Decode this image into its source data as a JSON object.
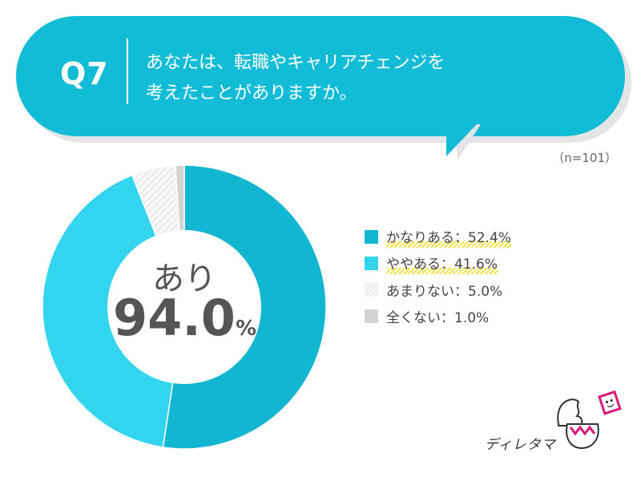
{
  "question": {
    "number": "Q7",
    "line1": "あなたは、転職やキャリアチェンジを",
    "line2": "考えたことがありますか。"
  },
  "sample_note": "（n=101）",
  "center": {
    "label": "あり",
    "value": "94.0",
    "unit": "%"
  },
  "legend": [
    {
      "text": "かなりある：52.4%"
    },
    {
      "text": "ややある：41.6%"
    },
    {
      "text": "あまりない：5.0%"
    },
    {
      "text": "全くない：1.0%"
    }
  ],
  "brand": {
    "name": "ディレタマ"
  },
  "chart_data": {
    "type": "pie",
    "categories": [
      "かなりある",
      "ややある",
      "あまりない",
      "全くない"
    ],
    "values": [
      52.4,
      41.6,
      5.0,
      1.0
    ],
    "unit": "%",
    "colors": [
      "#12b6d0",
      "#33d4ee",
      "hatched-light-gray",
      "#d3d3d3"
    ],
    "center_label": "あり",
    "center_value": 94.0,
    "legend_placement": "right"
  }
}
